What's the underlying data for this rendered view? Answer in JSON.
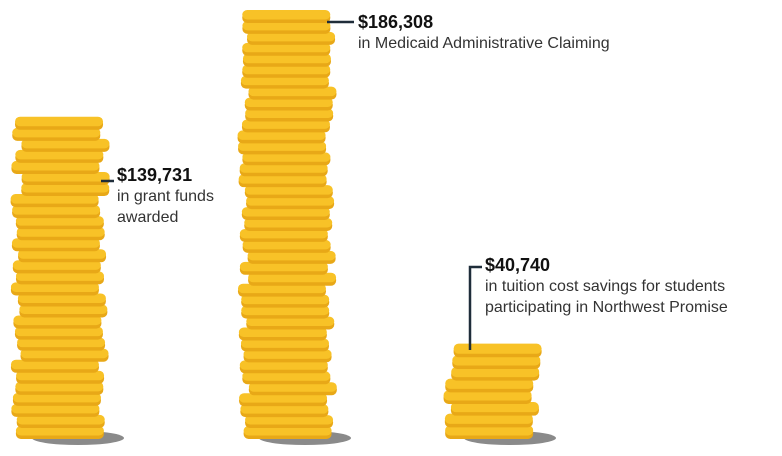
{
  "chart_data": {
    "type": "coin-stack",
    "categories": [
      "in grant funds awarded",
      "in Medicaid Administrative Claiming",
      "in tuition cost savings for students participating in Northwest Promise"
    ],
    "values": [
      139731,
      186308,
      40740
    ],
    "value_labels": [
      "$139,731",
      "$186,308",
      "$40,740"
    ],
    "color": "#f8c227"
  }
}
